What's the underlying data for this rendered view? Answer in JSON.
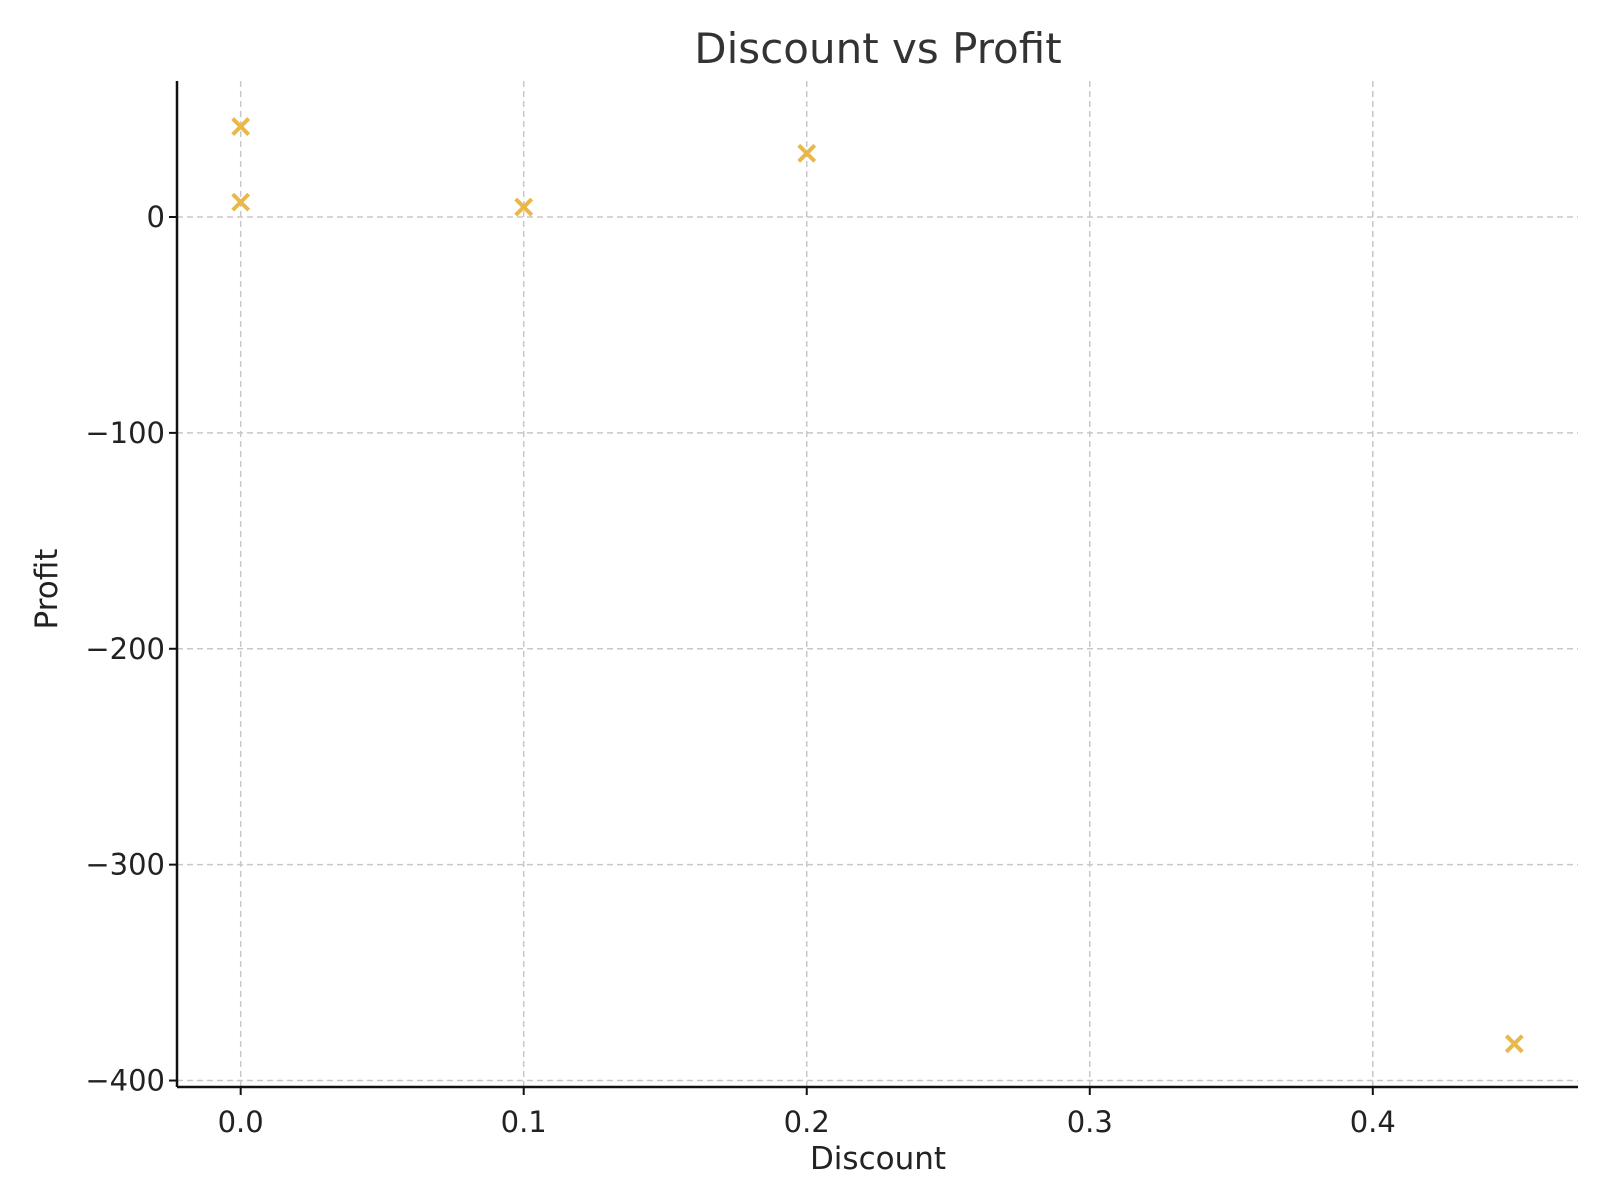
{
  "chart_data": {
    "type": "scatter",
    "title": "Discount vs Profit",
    "xlabel": "Discount",
    "ylabel": "Profit",
    "xlim": [
      -0.0225,
      0.4725
    ],
    "ylim": [
      -403,
      63
    ],
    "xticks": [
      0.0,
      0.1,
      0.2,
      0.3,
      0.4
    ],
    "xtick_labels": [
      "0.0",
      "0.1",
      "0.2",
      "0.3",
      "0.4"
    ],
    "yticks": [
      0,
      -100,
      -200,
      -300,
      -400
    ],
    "ytick_labels": [
      "0",
      "−100",
      "−200",
      "−300",
      "−400"
    ],
    "grid": true,
    "marker": "x",
    "color": "#E8B84A",
    "points": [
      {
        "x": 0.0,
        "y": 41.9
      },
      {
        "x": 0.0,
        "y": 6.9
      },
      {
        "x": 0.1,
        "y": 4.6
      },
      {
        "x": 0.2,
        "y": 29.5
      },
      {
        "x": 0.45,
        "y": -383.0
      }
    ]
  }
}
